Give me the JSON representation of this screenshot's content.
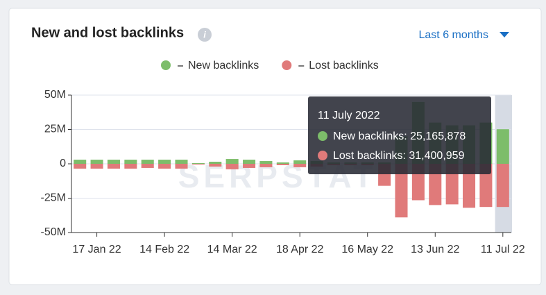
{
  "chart_data": {
    "type": "bar",
    "title": "New and lost backlinks",
    "period": "Last 6 months",
    "watermark": "SERPSTAT",
    "categories": [
      null,
      "17 Jan 22",
      null,
      null,
      null,
      "14 Feb 22",
      null,
      null,
      null,
      "14 Mar 22",
      null,
      null,
      null,
      "18 Apr 22",
      null,
      null,
      null,
      "16 May 22",
      null,
      null,
      null,
      "13 Jun 22",
      null,
      null,
      null,
      "11 Jul 22"
    ],
    "series": [
      {
        "name": "New backlinks",
        "color": "#7dbd6a",
        "values": [
          3,
          3,
          3,
          3,
          3,
          3,
          3,
          0.5,
          1.5,
          3.5,
          3,
          2,
          1,
          2.5,
          2,
          1,
          1,
          1,
          1,
          20,
          45,
          30,
          28,
          28,
          30,
          25.165878
        ]
      },
      {
        "name": "Lost backlinks",
        "color": "#e07a7a",
        "values": [
          -3.5,
          -3.5,
          -3.5,
          -3.5,
          -3,
          -3.5,
          -3.5,
          -0.5,
          -2,
          -4,
          -3,
          -2.5,
          -1,
          -2.5,
          -2,
          -1,
          -1,
          -1,
          -16,
          -39,
          -26.5,
          -30,
          -29.5,
          -32,
          -31.4,
          -31.400959
        ]
      }
    ],
    "ylim": [
      -50,
      50
    ],
    "yticks": [
      {
        "value": 50,
        "label": "50M"
      },
      {
        "value": 25,
        "label": "25M"
      },
      0,
      {
        "value": -25,
        "label": "-25M"
      },
      {
        "value": -50,
        "label": "-50M"
      }
    ],
    "grid": true,
    "tooltip": {
      "title": "11 July 2022",
      "lines": [
        "New backlinks: 25,165,878",
        "Lost backlinks: 31,400,959"
      ]
    }
  }
}
